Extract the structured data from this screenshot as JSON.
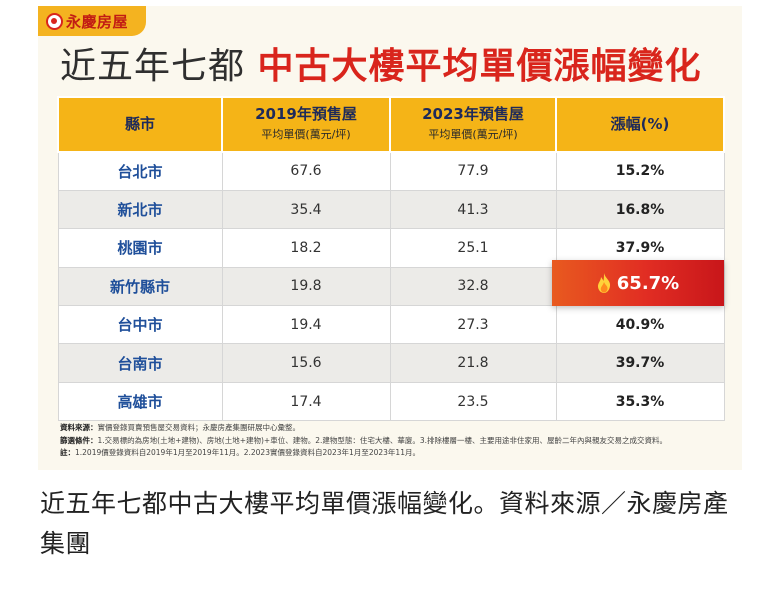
{
  "brand": {
    "name": "永慶房屋"
  },
  "title": {
    "part1": "近五年七都 ",
    "part2": "中古大樓平均單價漲幅變化"
  },
  "table": {
    "headers": {
      "city": "縣市",
      "y2019": "2019年預售屋",
      "y2019_sub": "平均單價(萬元/坪)",
      "y2023": "2023年預售屋",
      "y2023_sub": "平均單價(萬元/坪)",
      "change": "漲幅(%)"
    },
    "rows": [
      {
        "city": "台北市",
        "v2019": "67.6",
        "v2023": "77.9",
        "change": "15.2%"
      },
      {
        "city": "新北市",
        "v2019": "35.4",
        "v2023": "41.3",
        "change": "16.8%"
      },
      {
        "city": "桃園市",
        "v2019": "18.2",
        "v2023": "25.1",
        "change": "37.9%"
      },
      {
        "city": "新竹縣市",
        "v2019": "19.8",
        "v2023": "32.8",
        "change": "65.7%"
      },
      {
        "city": "台中市",
        "v2019": "19.4",
        "v2023": "27.3",
        "change": "40.9%"
      },
      {
        "city": "台南市",
        "v2019": "15.6",
        "v2023": "21.8",
        "change": "39.7%"
      },
      {
        "city": "高雄市",
        "v2019": "17.4",
        "v2023": "23.5",
        "change": "35.3%"
      }
    ],
    "highlight": {
      "value": "65.7%",
      "icon": "flame-icon"
    }
  },
  "notes": {
    "source_label": "資料來源：",
    "source": "實價登錄買賣預售屋交易資料；永慶房產集團研展中心彙整。",
    "filter_label": "篩選條件：",
    "filter": "1.交易標的為房地(土地+建物)、房地(土地+建物)+車位、建物。2.建物型態：住宅大樓、華廈。3.排除樓層一樓、主要用途非住家用、屋齡二年內與親友交易之成交資料。",
    "note_label": "註：",
    "note": "1.2019價登錄資料自2019年1月至2019年11月。2.2023實價登錄資料自2023年1月至2023年11月。"
  },
  "caption": "近五年七都中古大樓平均單價漲幅變化。資料來源／永慶房產集團"
}
